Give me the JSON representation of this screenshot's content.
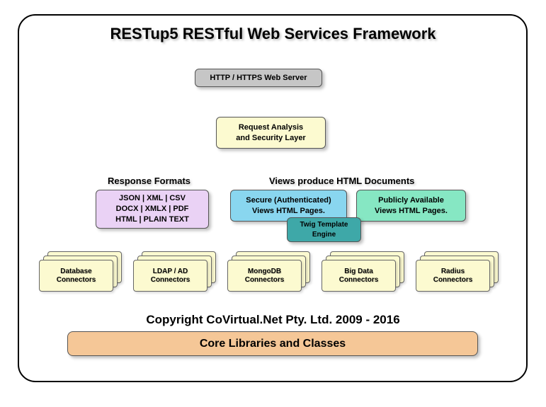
{
  "title": "RESTup5 RESTful Web Services Framework",
  "http_server": {
    "label": "HTTP / HTTPS Web Server",
    "bg": "#c6c6c6"
  },
  "request_layer": {
    "line1": "Request Analysis",
    "line2": "and Security Layer",
    "bg": "#fcfad0"
  },
  "response_formats": {
    "heading": "Response Formats",
    "line1": "JSON | XML | CSV",
    "line2": "DOCX | XMLX | PDF",
    "line3": "HTML | PLAIN TEXT",
    "bg": "#ead2f5"
  },
  "views": {
    "heading": "Views produce HTML Documents",
    "secure": {
      "line1": "Secure (Authenticated)",
      "line2": "Views HTML Pages.",
      "bg": "#89d6ef"
    },
    "public": {
      "line1": "Publicly Available",
      "line2": "Views HTML Pages.",
      "bg": "#86e7c3"
    },
    "twig": {
      "line1": "Twig Template",
      "line2": "Engine",
      "bg": "#3ea8a8"
    }
  },
  "connectors": {
    "bg": "#fcfad0",
    "items": [
      {
        "line1": "Database",
        "line2": "Connectors"
      },
      {
        "line1": "LDAP / AD",
        "line2": "Connectors"
      },
      {
        "line1": "MongoDB",
        "line2": "Connectors"
      },
      {
        "line1": "Big Data",
        "line2": "Connectors"
      },
      {
        "line1": "Radius",
        "line2": "Connectors"
      }
    ]
  },
  "copyright": "Copyright CoVirtual.Net Pty. Ltd. 2009 - 2016",
  "core": {
    "label": "Core Libraries and Classes",
    "bg": "#f5c797"
  }
}
